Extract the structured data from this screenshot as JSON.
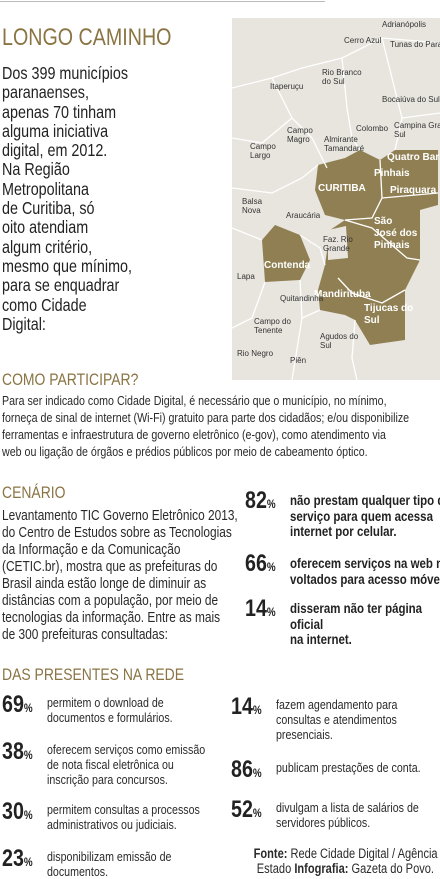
{
  "header": {
    "title": "LONGO CAMINHO",
    "intro_lines": [
      "Dos 399 municípios",
      "paranaenses,",
      "apenas 70 tinham",
      "alguma iniciativa",
      "digital, em 2012.",
      "Na Região",
      "Metropolitana",
      "de Curitiba, só",
      "oito atendiam",
      "algum critério,",
      "mesmo que mínimo,",
      "para se enquadrar",
      "como Cidade",
      "Digital:"
    ]
  },
  "map": {
    "labels": [
      {
        "lines": [
          "Adrianópolis"
        ]
      },
      {
        "lines": [
          "Cerro Azul"
        ]
      },
      {
        "lines": [
          "Tunas do Paraná"
        ]
      },
      {
        "lines": [
          "Rio Branco",
          "do Sul"
        ]
      },
      {
        "lines": [
          "Itaperuçu"
        ]
      },
      {
        "lines": [
          "Bocaiúva do Sul"
        ]
      },
      {
        "lines": [
          "Campo",
          "Magro"
        ]
      },
      {
        "lines": [
          "Almirante",
          "Tamandaré"
        ]
      },
      {
        "lines": [
          "Colombo"
        ]
      },
      {
        "lines": [
          "Campina Grande do",
          "Sul"
        ]
      },
      {
        "lines": [
          "Campo",
          "Largo"
        ]
      },
      {
        "lines": [
          "Quatro Barras"
        ]
      },
      {
        "lines": [
          "Pinhais"
        ]
      },
      {
        "lines": [
          "CURITIBA"
        ]
      },
      {
        "lines": [
          "Piraquara"
        ]
      },
      {
        "lines": [
          "Balsa",
          "Nova"
        ]
      },
      {
        "lines": [
          "Araucária"
        ]
      },
      {
        "lines": [
          "São",
          "José dos",
          "Pinhais"
        ]
      },
      {
        "lines": [
          "Faz. Rio",
          "Grande"
        ]
      },
      {
        "lines": [
          "Contenda"
        ]
      },
      {
        "lines": [
          "Lapa"
        ]
      },
      {
        "lines": [
          "Mandirituba"
        ]
      },
      {
        "lines": [
          "Quitandinha"
        ]
      },
      {
        "lines": [
          "Tijucas do",
          "Sul"
        ]
      },
      {
        "lines": [
          "Campo do",
          "Tenente"
        ]
      },
      {
        "lines": [
          "Agudos do",
          "Sul"
        ]
      },
      {
        "lines": [
          "Rio Negro"
        ]
      },
      {
        "lines": [
          "Piên"
        ]
      }
    ]
  },
  "participar": {
    "heading": "COMO PARTICIPAR?",
    "lines": [
      "Para ser indicado como Cidade Digital, é necessário que o município, no mínimo,",
      "forneça de sinal de internet (Wi-Fi) gratuito para parte dos cidadãos; e/ou disponibilize",
      "ferramentas e infraestrutura de governo eletrônico (e-gov), como atendimento via",
      "web ou ligação de órgãos e prédios públicos por meio de cabeamento óptico."
    ]
  },
  "cenario": {
    "heading": "CENÁRIO",
    "lines": [
      "Levantamento TIC Governo Eletrônico 2013,",
      "do Centro de Estudos sobre as Tecnologias",
      "da Informação e da Comunicação",
      "(CETIC.br), mostra que as prefeituras do",
      "Brasil ainda estão longe de diminuir as",
      "distâncias com a população, por meio de",
      "tecnologias da informação. Entre as mais",
      "de 300 prefeituras consultadas:"
    ],
    "stats": [
      {
        "value": "82",
        "unit": "%",
        "lines": [
          "não prestam qualquer tipo de",
          "serviço para quem acessa",
          "internet por celular."
        ]
      },
      {
        "value": "66",
        "unit": "%",
        "lines": [
          "oferecem serviços na web não",
          "voltados para acesso móvel."
        ]
      },
      {
        "value": "14",
        "unit": "%",
        "lines": [
          "disseram não ter página",
          "oficial",
          "na internet."
        ]
      }
    ]
  },
  "rede": {
    "heading": "DAS PRESENTES NA REDE",
    "left": [
      {
        "value": "69",
        "unit": "%",
        "lines": [
          "permitem o download de",
          "documentos e formulários."
        ]
      },
      {
        "value": "38",
        "unit": "%",
        "lines": [
          "oferecem serviços como emissão",
          "de nota fiscal eletrônica ou",
          "inscrição para concursos."
        ]
      },
      {
        "value": "30",
        "unit": "%",
        "lines": [
          "permitem consultas a processos",
          "administrativos ou judiciais."
        ]
      },
      {
        "value": "23",
        "unit": "%",
        "lines": [
          "disponibilizam emissão de",
          "documentos."
        ]
      }
    ],
    "right": [
      {
        "value": "14",
        "unit": "%",
        "lines": [
          "fazem agendamento para",
          "consultas e atendimentos",
          "presenciais."
        ]
      },
      {
        "value": "86",
        "unit": "%",
        "lines": [
          "publicam prestações de conta."
        ]
      },
      {
        "value": "52",
        "unit": "%",
        "lines": [
          "divulgam a lista de salários de",
          "servidores públicos."
        ]
      }
    ]
  },
  "source": {
    "label1": "Fonte:",
    "text1": "Rede Cidade Digital / Agência",
    "text1b": "Estado",
    "label2": "Infografia:",
    "text2": "Gazeta do Povo."
  }
}
